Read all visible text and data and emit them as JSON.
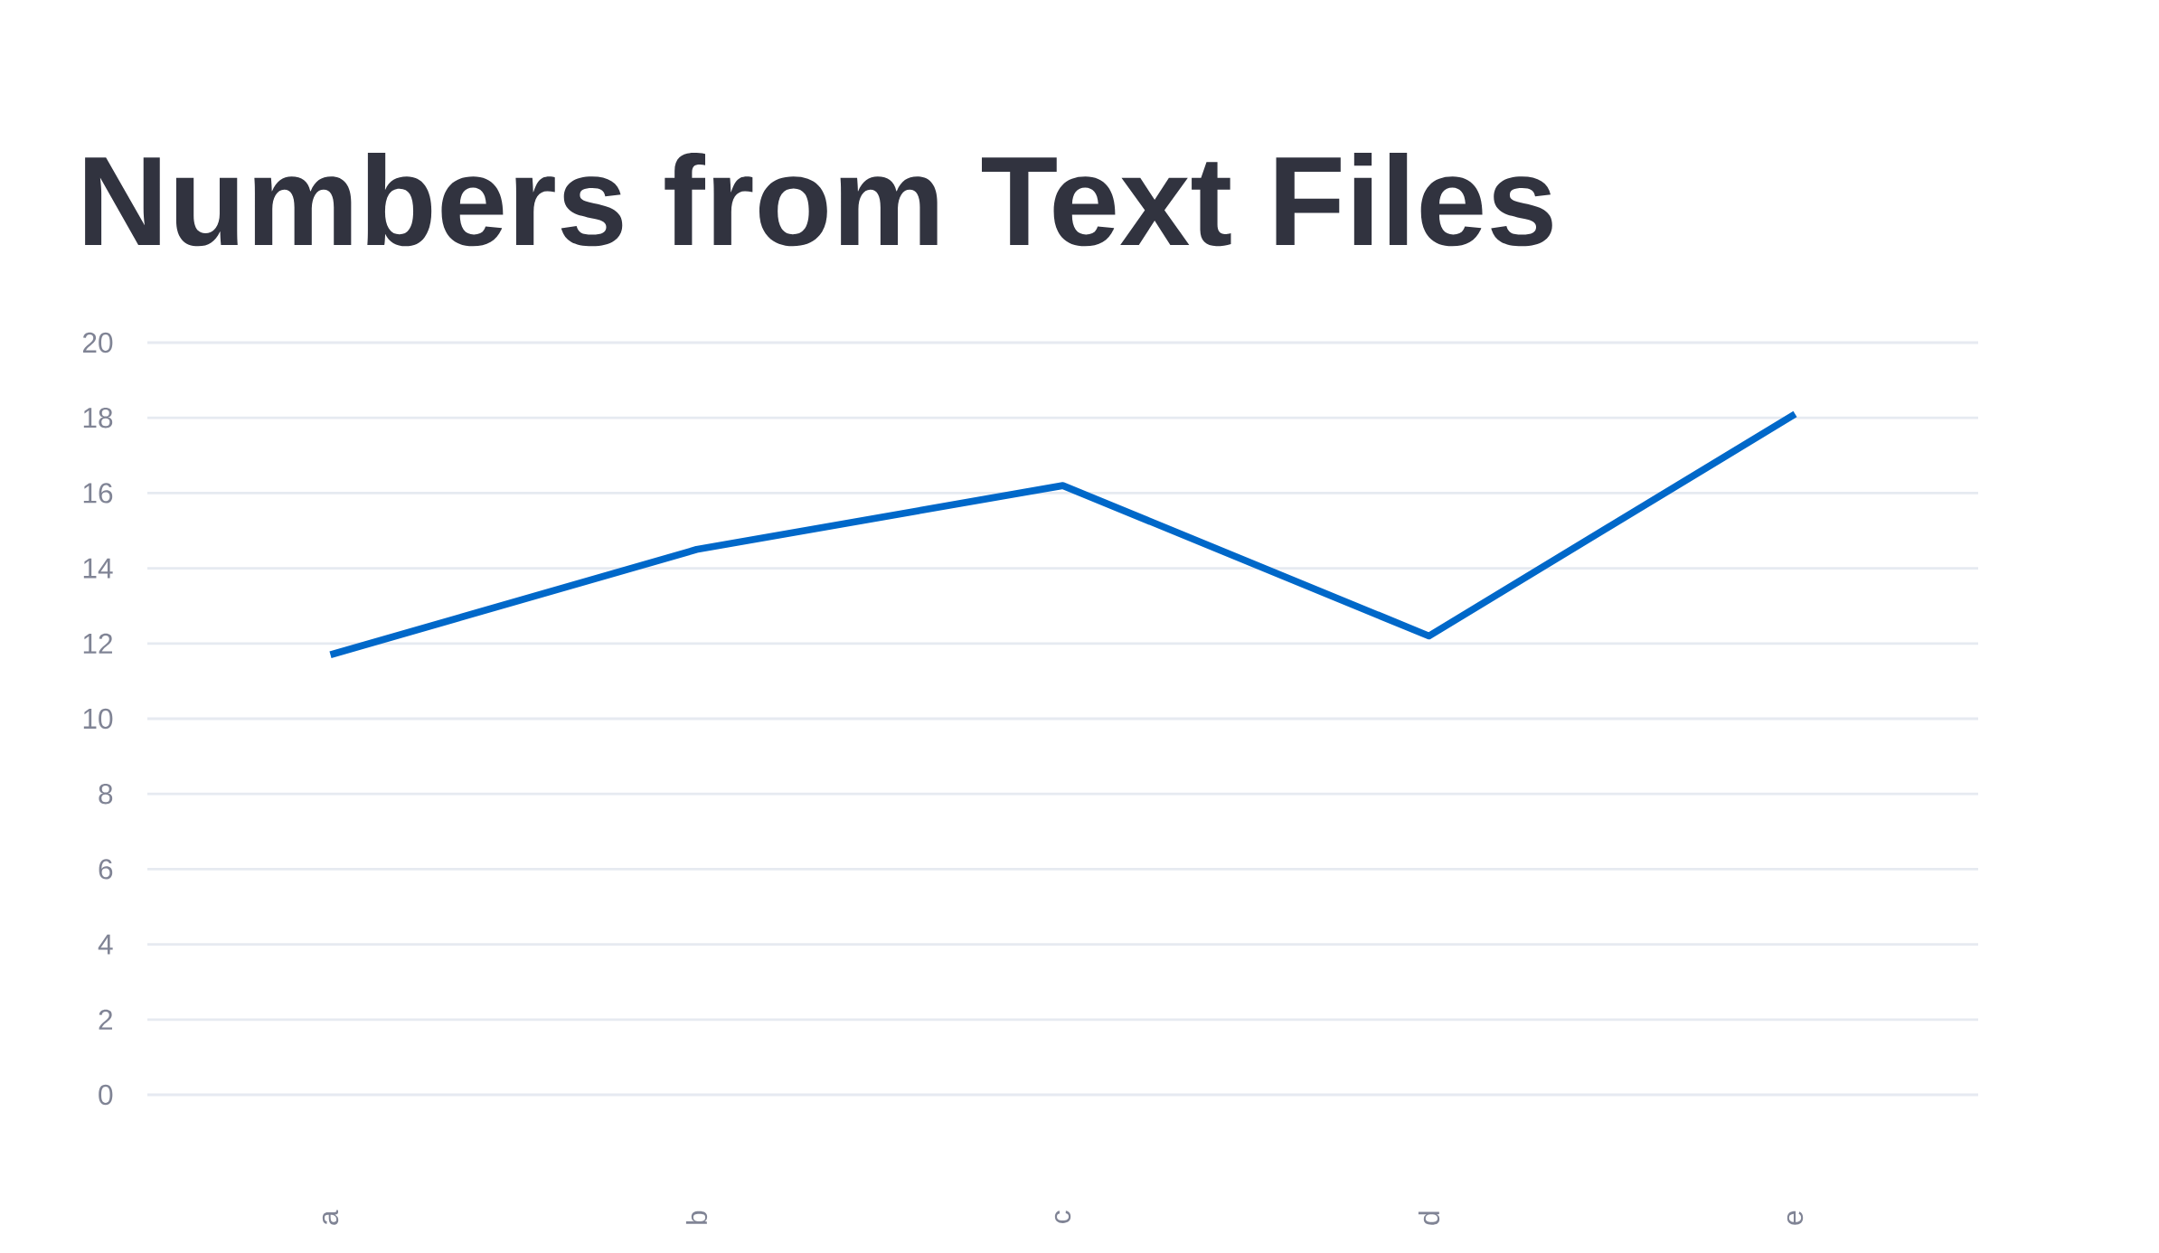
{
  "chart_data": {
    "type": "line",
    "title": "Numbers from Text Files",
    "categories": [
      "a",
      "b",
      "c",
      "d",
      "e"
    ],
    "series": [
      {
        "color": "#0068c9",
        "values": [
          11.7,
          14.5,
          16.2,
          12.2,
          18.1
        ]
      }
    ],
    "ylim": [
      0,
      20
    ],
    "yticks": [
      0,
      2,
      4,
      6,
      8,
      10,
      12,
      14,
      16,
      18,
      20
    ],
    "grid": "y",
    "marker": "none",
    "line_style": "solid"
  }
}
